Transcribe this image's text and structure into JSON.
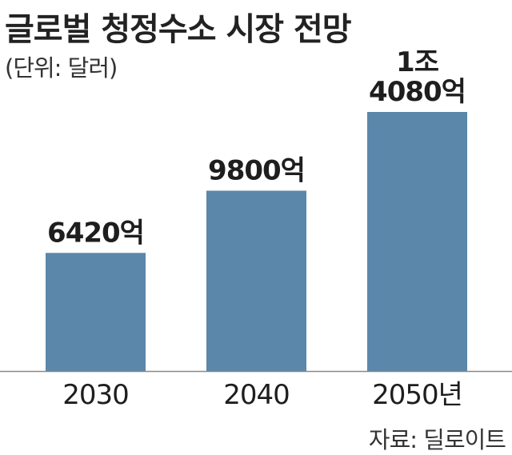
{
  "title": "글로벌 청정수소 시장 전망",
  "unit_note": "(단위: 달러)",
  "source": "자료: 딜로이트",
  "colors": {
    "bar": "#5b87aa",
    "axis": "#888888"
  },
  "chart_data": {
    "type": "bar",
    "title": "글로벌 청정수소 시장 전망",
    "categories": [
      "2030",
      "2040",
      "2050년"
    ],
    "values": [
      642000000000,
      980000000000,
      1408000000000
    ],
    "value_labels": [
      [
        "6420억"
      ],
      [
        "9800억"
      ],
      [
        "1조",
        "4080억"
      ]
    ],
    "unit": "달러",
    "xlabel": "",
    "ylabel": "",
    "ylim": [
      0,
      1408000000000
    ],
    "grid": false,
    "legend": "none"
  }
}
